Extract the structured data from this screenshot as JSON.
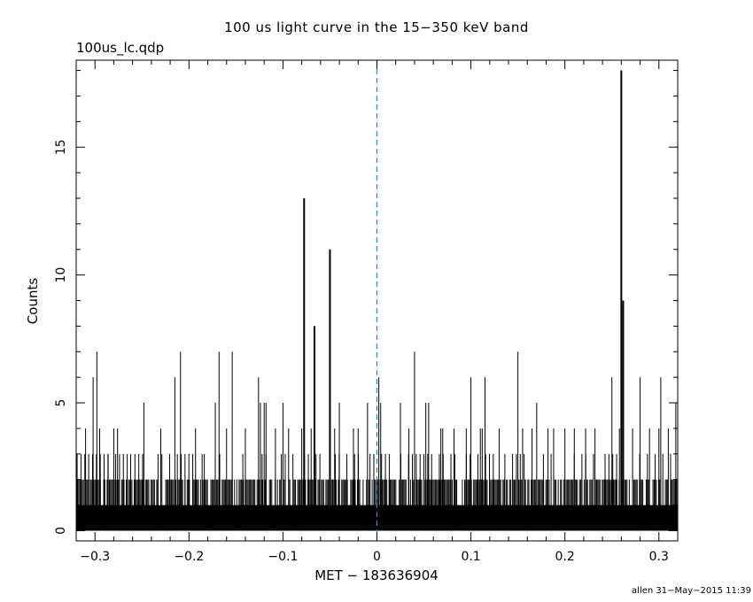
{
  "chart_data": {
    "type": "bar",
    "title": "100 us light curve in the 15−350 keV band",
    "filename": "100us_lc.qdp",
    "xlabel": "MET − 183636904",
    "ylabel": "Counts",
    "footer": "allen 31−May−2015 11:39",
    "xlim": [
      -0.32,
      0.32
    ],
    "ylim": [
      -0.4,
      18.4
    ],
    "bin_width": 0.0001,
    "xticks": [
      -0.3,
      -0.2,
      -0.1,
      0,
      0.1,
      0.2,
      0.3
    ],
    "xtick_labels": [
      "−0.3",
      "−0.2",
      "−0.1",
      "0",
      "0.1",
      "0.2",
      "0.3"
    ],
    "yticks": [
      0,
      5,
      10,
      15
    ],
    "ytick_labels": [
      "0",
      "5",
      "10",
      "15"
    ],
    "grid": false,
    "reference_line": {
      "x": 0,
      "style": "dashed",
      "color": "#1a8fc4"
    },
    "baseline": {
      "level": 1,
      "max_level": 2,
      "description": "dense 0-2 count noise across all bins"
    },
    "spikes": {
      "x": [
        -0.31,
        -0.302,
        -0.298,
        -0.295,
        -0.286,
        -0.28,
        -0.276,
        -0.262,
        -0.248,
        -0.23,
        -0.215,
        -0.209,
        -0.193,
        -0.186,
        -0.172,
        -0.168,
        -0.16,
        -0.154,
        -0.14,
        -0.126,
        -0.124,
        -0.12,
        -0.118,
        -0.108,
        -0.1,
        -0.094,
        -0.08,
        -0.0775,
        -0.07,
        -0.0665,
        -0.05,
        -0.045,
        -0.04,
        -0.025,
        -0.02,
        -0.01,
        0.002,
        0.004,
        0.025,
        0.034,
        0.04,
        0.052,
        0.055,
        0.068,
        0.07,
        0.082,
        0.095,
        0.1,
        0.11,
        0.112,
        0.115,
        0.13,
        0.15,
        0.155,
        0.165,
        0.17,
        0.182,
        0.188,
        0.2,
        0.21,
        0.222,
        0.232,
        0.25,
        0.258,
        0.26,
        0.262,
        0.272,
        0.28,
        0.29,
        0.3,
        0.302,
        0.31,
        0.318
      ],
      "counts": [
        4,
        6,
        7,
        4,
        3,
        4,
        4,
        3,
        5,
        4,
        6,
        7,
        4,
        3,
        5,
        7,
        4,
        7,
        4,
        6,
        5,
        5,
        5,
        4,
        5,
        4,
        4,
        13,
        4,
        8,
        11,
        4,
        5,
        4,
        4,
        5,
        6,
        5,
        5,
        4,
        7,
        5,
        5,
        4,
        4,
        4,
        4,
        6,
        4,
        4,
        6,
        4,
        7,
        4,
        4,
        5,
        4,
        4,
        4,
        4,
        4,
        4,
        6,
        4,
        18,
        9,
        4,
        6,
        4,
        4,
        6,
        4,
        5
      ]
    }
  }
}
